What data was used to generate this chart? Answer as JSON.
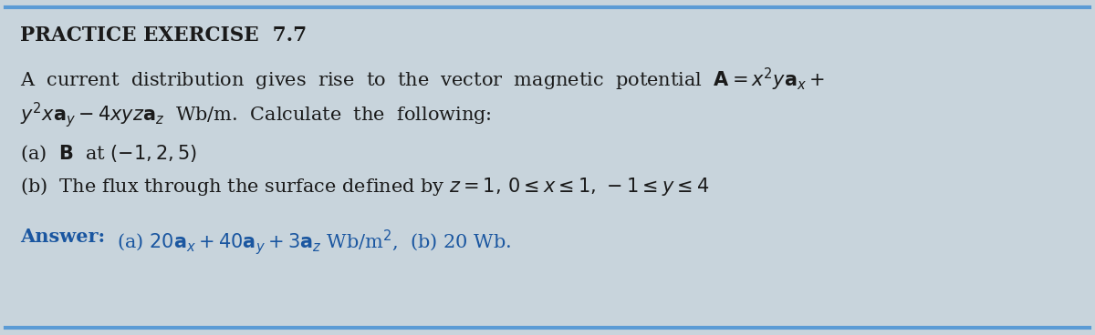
{
  "title": "PRACTICE EXERCISE  7.7",
  "bg_color": "#c8d4dc",
  "border_color": "#5b9bd5",
  "title_color": "#1a1a1a",
  "title_fontsize": 15.5,
  "body_fontsize": 15,
  "answer_color": "#1a56a0",
  "line1": "A  current  distribution  gives  rise  to  the  vector  magnetic  potential  $\\mathbf{A} = x^2y\\mathbf{a}_x +$",
  "line2": "$y^2x\\mathbf{a}_y - 4xyz\\mathbf{a}_z$  Wb/m.  Calculate  the  following:",
  "item_a": "(a)  $\\mathbf{B}$  at $(-1, 2, 5)$",
  "item_b": "(b)  The flux through the surface defined by $z = 1,\\, 0 \\leq x \\leq 1,\\, -1 \\leq y \\leq 4$",
  "answer_label": "Answer:",
  "answer_body": "  (a) $20\\mathbf{a}_x + 40\\mathbf{a}_y + 3\\mathbf{a}_z$ Wb/m$^2$,  (b) 20 Wb."
}
